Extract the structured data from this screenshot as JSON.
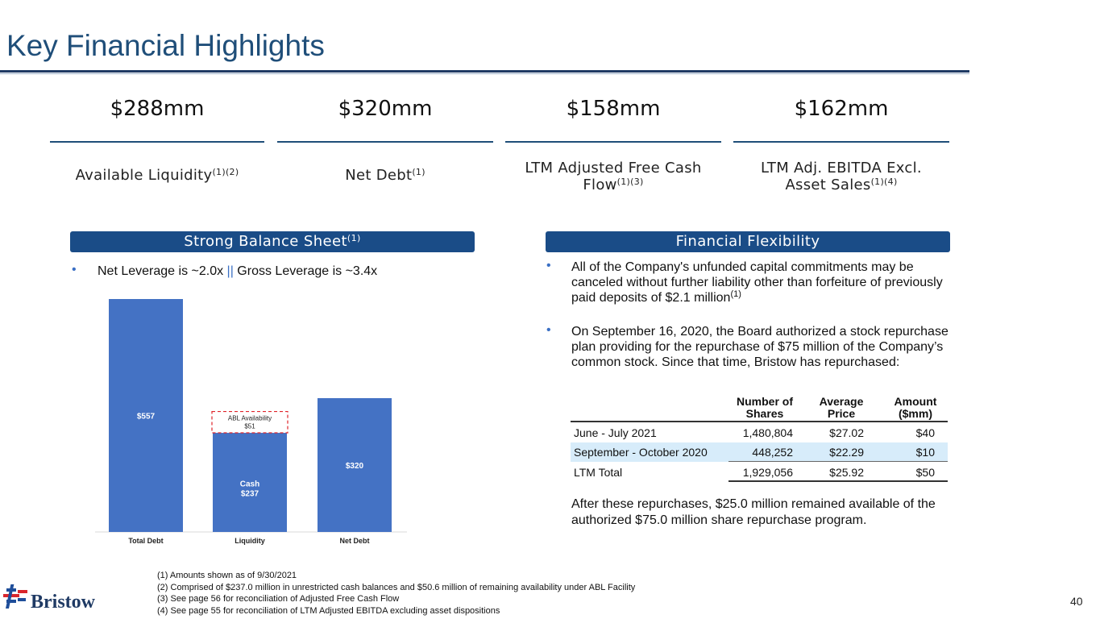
{
  "title": "Key Financial Highlights",
  "kpis": [
    {
      "value": "$288mm",
      "label": "Available Liquidity",
      "sup": "(1)(2)"
    },
    {
      "value": "$320mm",
      "label": "Net Debt",
      "sup": "(1)"
    },
    {
      "value": "$158mm",
      "label_line1": "LTM Adjusted Free Cash",
      "label_line2": "Flow",
      "sup": "(1)(3)"
    },
    {
      "value": "$162mm",
      "label_line1": "LTM Adj. EBITDA Excl.",
      "label_line2": "Asset Sales",
      "sup": "(1)(4)"
    }
  ],
  "left_section": {
    "banner": "Strong Balance Sheet",
    "banner_sup": "(1)",
    "bullet_a": "Net Leverage is ~2.0x ",
    "bullet_pipe": "||",
    "bullet_b": " Gross Leverage is ~3.4x"
  },
  "chart_data": {
    "type": "bar",
    "categories": [
      "Total Debt",
      "Liquidity",
      "Net Debt"
    ],
    "stacked_segments": [
      {
        "category": "Total Debt",
        "value": 557,
        "label": "$557"
      },
      {
        "category": "Liquidity",
        "value": 237,
        "label_line1": "Cash",
        "label_line2": "$237"
      },
      {
        "category": "Liquidity",
        "value": 51,
        "label_line1": "ABL Availability",
        "label_line2": "$51",
        "style": "dashed-outline"
      },
      {
        "category": "Net Debt",
        "value": 320,
        "label": "$320"
      }
    ],
    "ylim": [
      0,
      600
    ],
    "bar_color": "#4472c4",
    "outline_color": "#e0242a"
  },
  "right_section": {
    "banner": "Financial Flexibility",
    "bullet1": "All of the Company's unfunded capital commitments may be canceled without further liability other than forfeiture of previously paid deposits of $2.1 million",
    "bullet1_sup": "(1)",
    "bullet2": "On September 16, 2020, the Board authorized a stock repurchase plan providing for the repurchase of $75 million of the Company’s common stock. Since that time, Bristow has repurchased:",
    "table": {
      "headers": [
        {
          "line1": "Number of",
          "line2": "Shares"
        },
        {
          "line1": "Average",
          "line2": "Price"
        },
        {
          "line1": "Amount",
          "line2": "($mm)"
        }
      ],
      "rows": [
        {
          "period": "June - July 2021",
          "shares": "1,480,804",
          "price": "$27.02",
          "amount": "$40"
        },
        {
          "period": "September - October 2020",
          "shares": "448,252",
          "price": "$22.29",
          "amount": "$10"
        },
        {
          "period": "LTM Total",
          "shares": "1,929,056",
          "price": "$25.92",
          "amount": "$50"
        }
      ]
    },
    "after_text": "After these repurchases, $25.0 million remained available of the authorized $75.0 million share repurchase program."
  },
  "footnotes": [
    "(1) Amounts shown as of 9/30/2021",
    "(2) Comprised of $237.0 million in unrestricted cash balances and $50.6 million of remaining availability under ABL Facility",
    "(3) See page 56 for reconciliation of Adjusted Free Cash Flow",
    "(4) See page 55 for reconciliation of LTM Adjusted EBITDA excluding asset dispositions"
  ],
  "logo_text": "Bristow",
  "page_number": "40",
  "colors": {
    "title": "#1f4e79",
    "banner": "#1a4c87",
    "bar": "#4472c4",
    "highlight_row": "#d7ecfa"
  }
}
